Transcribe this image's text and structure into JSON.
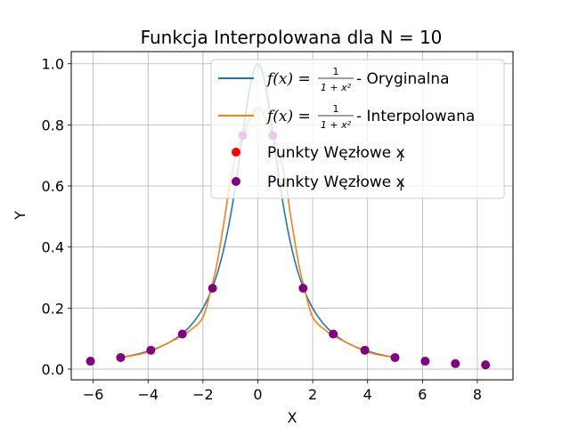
{
  "chart_data": {
    "type": "line",
    "title": "Funkcja Interpolowana dla N = 10",
    "xlabel": "X",
    "ylabel": "Y",
    "xlim": [
      -6.8,
      9.3
    ],
    "ylim": [
      -0.035,
      1.04
    ],
    "xticks": [
      -6,
      -4,
      -2,
      0,
      2,
      4,
      6,
      8
    ],
    "yticks": [
      0.0,
      0.2,
      0.4,
      0.6,
      0.8,
      1.0
    ],
    "xtick_labels": [
      "−6",
      "−4",
      "−2",
      "0",
      "2",
      "4",
      "6",
      "8"
    ],
    "ytick_labels": [
      "0.0",
      "0.2",
      "0.4",
      "0.6",
      "0.8",
      "1.0"
    ],
    "grid": true,
    "legend_position": "top-right",
    "series": [
      {
        "name": "f(x) = 1/(1+x²) - Oryginalna",
        "kind": "line",
        "color": "#1f77b4",
        "function": "1/(1+x^2)",
        "x_range": [
          -5,
          5
        ]
      },
      {
        "name": "f(x) = 1/(1+x²) - Interpolowana",
        "kind": "line",
        "color": "#ff7f0e",
        "x": [
          -5.0,
          -4.0,
          -3.0,
          -2.5,
          -2.0,
          -1.7,
          -1.5,
          -1.2,
          -1.0,
          -0.7,
          -0.55,
          -0.3,
          0.0,
          0.3,
          0.55,
          0.7,
          1.0,
          1.2,
          1.5,
          1.7,
          2.0,
          2.5,
          3.0,
          4.0,
          5.0
        ],
        "y": [
          0.038,
          0.056,
          0.098,
          0.125,
          0.17,
          0.265,
          0.34,
          0.5,
          0.62,
          0.73,
          0.76,
          0.82,
          0.855,
          0.82,
          0.76,
          0.73,
          0.62,
          0.5,
          0.34,
          0.265,
          0.17,
          0.125,
          0.098,
          0.056,
          0.038
        ]
      },
      {
        "name": "Punkty Węzłowe x_i",
        "kind": "scatter",
        "color": "#ff0000",
        "x": [],
        "y": []
      },
      {
        "name": "Punkty Węzłowe x_i",
        "kind": "scatter",
        "color": "#800080",
        "x": [
          -6.1,
          -5.0,
          -3.9,
          -2.75,
          -1.65,
          -0.55,
          0.55,
          1.65,
          2.75,
          3.9,
          5.0,
          6.1,
          7.2,
          8.3
        ],
        "y": [
          0.026,
          0.038,
          0.062,
          0.115,
          0.265,
          0.765,
          0.765,
          0.265,
          0.115,
          0.062,
          0.038,
          0.026,
          0.018,
          0.014
        ]
      }
    ],
    "legend": [
      {
        "prefix": "f(x) = ",
        "frac_num": "1",
        "frac_den": "1 + x²",
        "suffix": " - Oryginalna"
      },
      {
        "prefix": "f(x) = ",
        "frac_num": "1",
        "frac_den": "1 + x²",
        "suffix": " - Interpolowana"
      },
      {
        "label": "Punkty Węzłowe x",
        "sub": "i"
      },
      {
        "label": "Punkty Węzłowe x",
        "sub": "i"
      }
    ]
  }
}
